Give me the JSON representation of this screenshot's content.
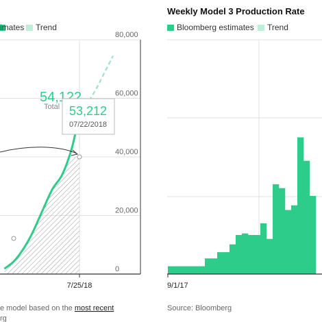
{
  "left_panel": {
    "legend": {
      "estimates_label": "imates",
      "trend_label": "Trend"
    },
    "y_ticks": [
      "80,000",
      "60,000",
      "40,000",
      "20,000",
      "0"
    ],
    "x_tick": "7/25/18",
    "total_value": "54,122",
    "total_label": "Total",
    "tooltip": {
      "value": "53,212",
      "date": "07/22/2018"
    },
    "footnote_pre": "e model based on the ",
    "footnote_link": "most recent",
    "footnote_line2": "rg"
  },
  "right_panel": {
    "title": "Weekly Model 3 Production Rate",
    "legend": {
      "estimates_label": "Bloomberg estimates",
      "trend_label": "Trend"
    },
    "x_tick": "9/1/17",
    "source": "Source: Bloomberg"
  },
  "colors": {
    "estimate": "#2ecc8a",
    "trend": "#bdeed7",
    "grid": "#e0e0e0",
    "axis": "#333333",
    "hatch": "#9a9a9a"
  },
  "chart_data": [
    {
      "type": "line",
      "title": "",
      "ylim": [
        0,
        80000
      ],
      "y_ticks": [
        0,
        20000,
        40000,
        60000,
        80000
      ],
      "series": [
        {
          "name": "Bloomberg estimates",
          "x": [
            "2017-12-01",
            "2018-01-01",
            "2018-02-01",
            "2018-03-01",
            "2018-04-01",
            "2018-05-01",
            "2018-06-01",
            "2018-07-01",
            "2018-07-22"
          ],
          "values": [
            1800,
            4500,
            9000,
            14500,
            22000,
            29000,
            34000,
            43000,
            53212
          ]
        },
        {
          "name": "Trend",
          "x": [
            "2018-07-22",
            "2018-08-15",
            "2018-09-10"
          ],
          "values": [
            53212,
            63000,
            74500
          ]
        }
      ],
      "markers": [
        {
          "x": "2018-01-01",
          "y": 5000
        },
        {
          "x": "2018-07-22",
          "y": 40000
        }
      ],
      "annotations": {
        "total": 54122,
        "tooltip": {
          "value": 53212,
          "date": "07/22/2018"
        }
      }
    },
    {
      "type": "bar",
      "title": "Weekly Model 3 Production Rate",
      "x_start": "9/1/17",
      "series": [
        {
          "name": "Bloomberg estimates",
          "values": [
            100,
            100,
            100,
            100,
            100,
            100,
            200,
            200,
            280,
            280,
            380,
            500,
            520,
            500,
            500,
            650,
            450,
            1150,
            1100,
            820,
            880,
            1750,
            1450,
            1000
          ]
        }
      ],
      "ylim": [
        0,
        3000
      ]
    }
  ]
}
